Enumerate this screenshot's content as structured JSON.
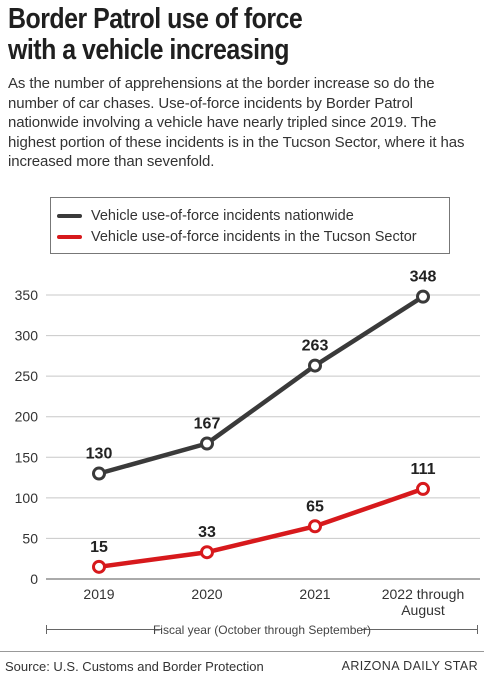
{
  "header": {
    "title_line1": "Border Patrol use of force",
    "title_line2": "with a vehicle increasing",
    "dek": "As the number of apprehensions at the border increase so do the number of car chases. Use-of-force incidents by Border Patrol nationwide involving a vehicle have nearly tripled since 2019. The highest portion of these incidents is in the Tucson Sector, where it has increased more than sevenfold."
  },
  "footer": {
    "source": "Source: U.S. Customs and Border Protection",
    "brand": "ARIZONA DAILY STAR"
  },
  "chart_data": {
    "type": "line",
    "categories": [
      "2019",
      "2020",
      "2021",
      "2022 through August"
    ],
    "category_labels": [
      [
        "2019"
      ],
      [
        "2020"
      ],
      [
        "2021"
      ],
      [
        "2022 through",
        "August"
      ]
    ],
    "xlabel": "Fiscal year (October through September)",
    "ylabel": "",
    "ylim": [
      0,
      350
    ],
    "yticks": [
      0,
      50,
      100,
      150,
      200,
      250,
      300,
      350
    ],
    "grid": true,
    "legend_position": "top",
    "series": [
      {
        "name": "Vehicle use-of-force incidents nationwide",
        "values": [
          130,
          167,
          263,
          348
        ],
        "color": "#3a3a3a"
      },
      {
        "name": "Vehicle use-of-force incidents in the Tucson Sector",
        "values": [
          15,
          33,
          65,
          111
        ],
        "color": "#d7191c"
      }
    ]
  }
}
